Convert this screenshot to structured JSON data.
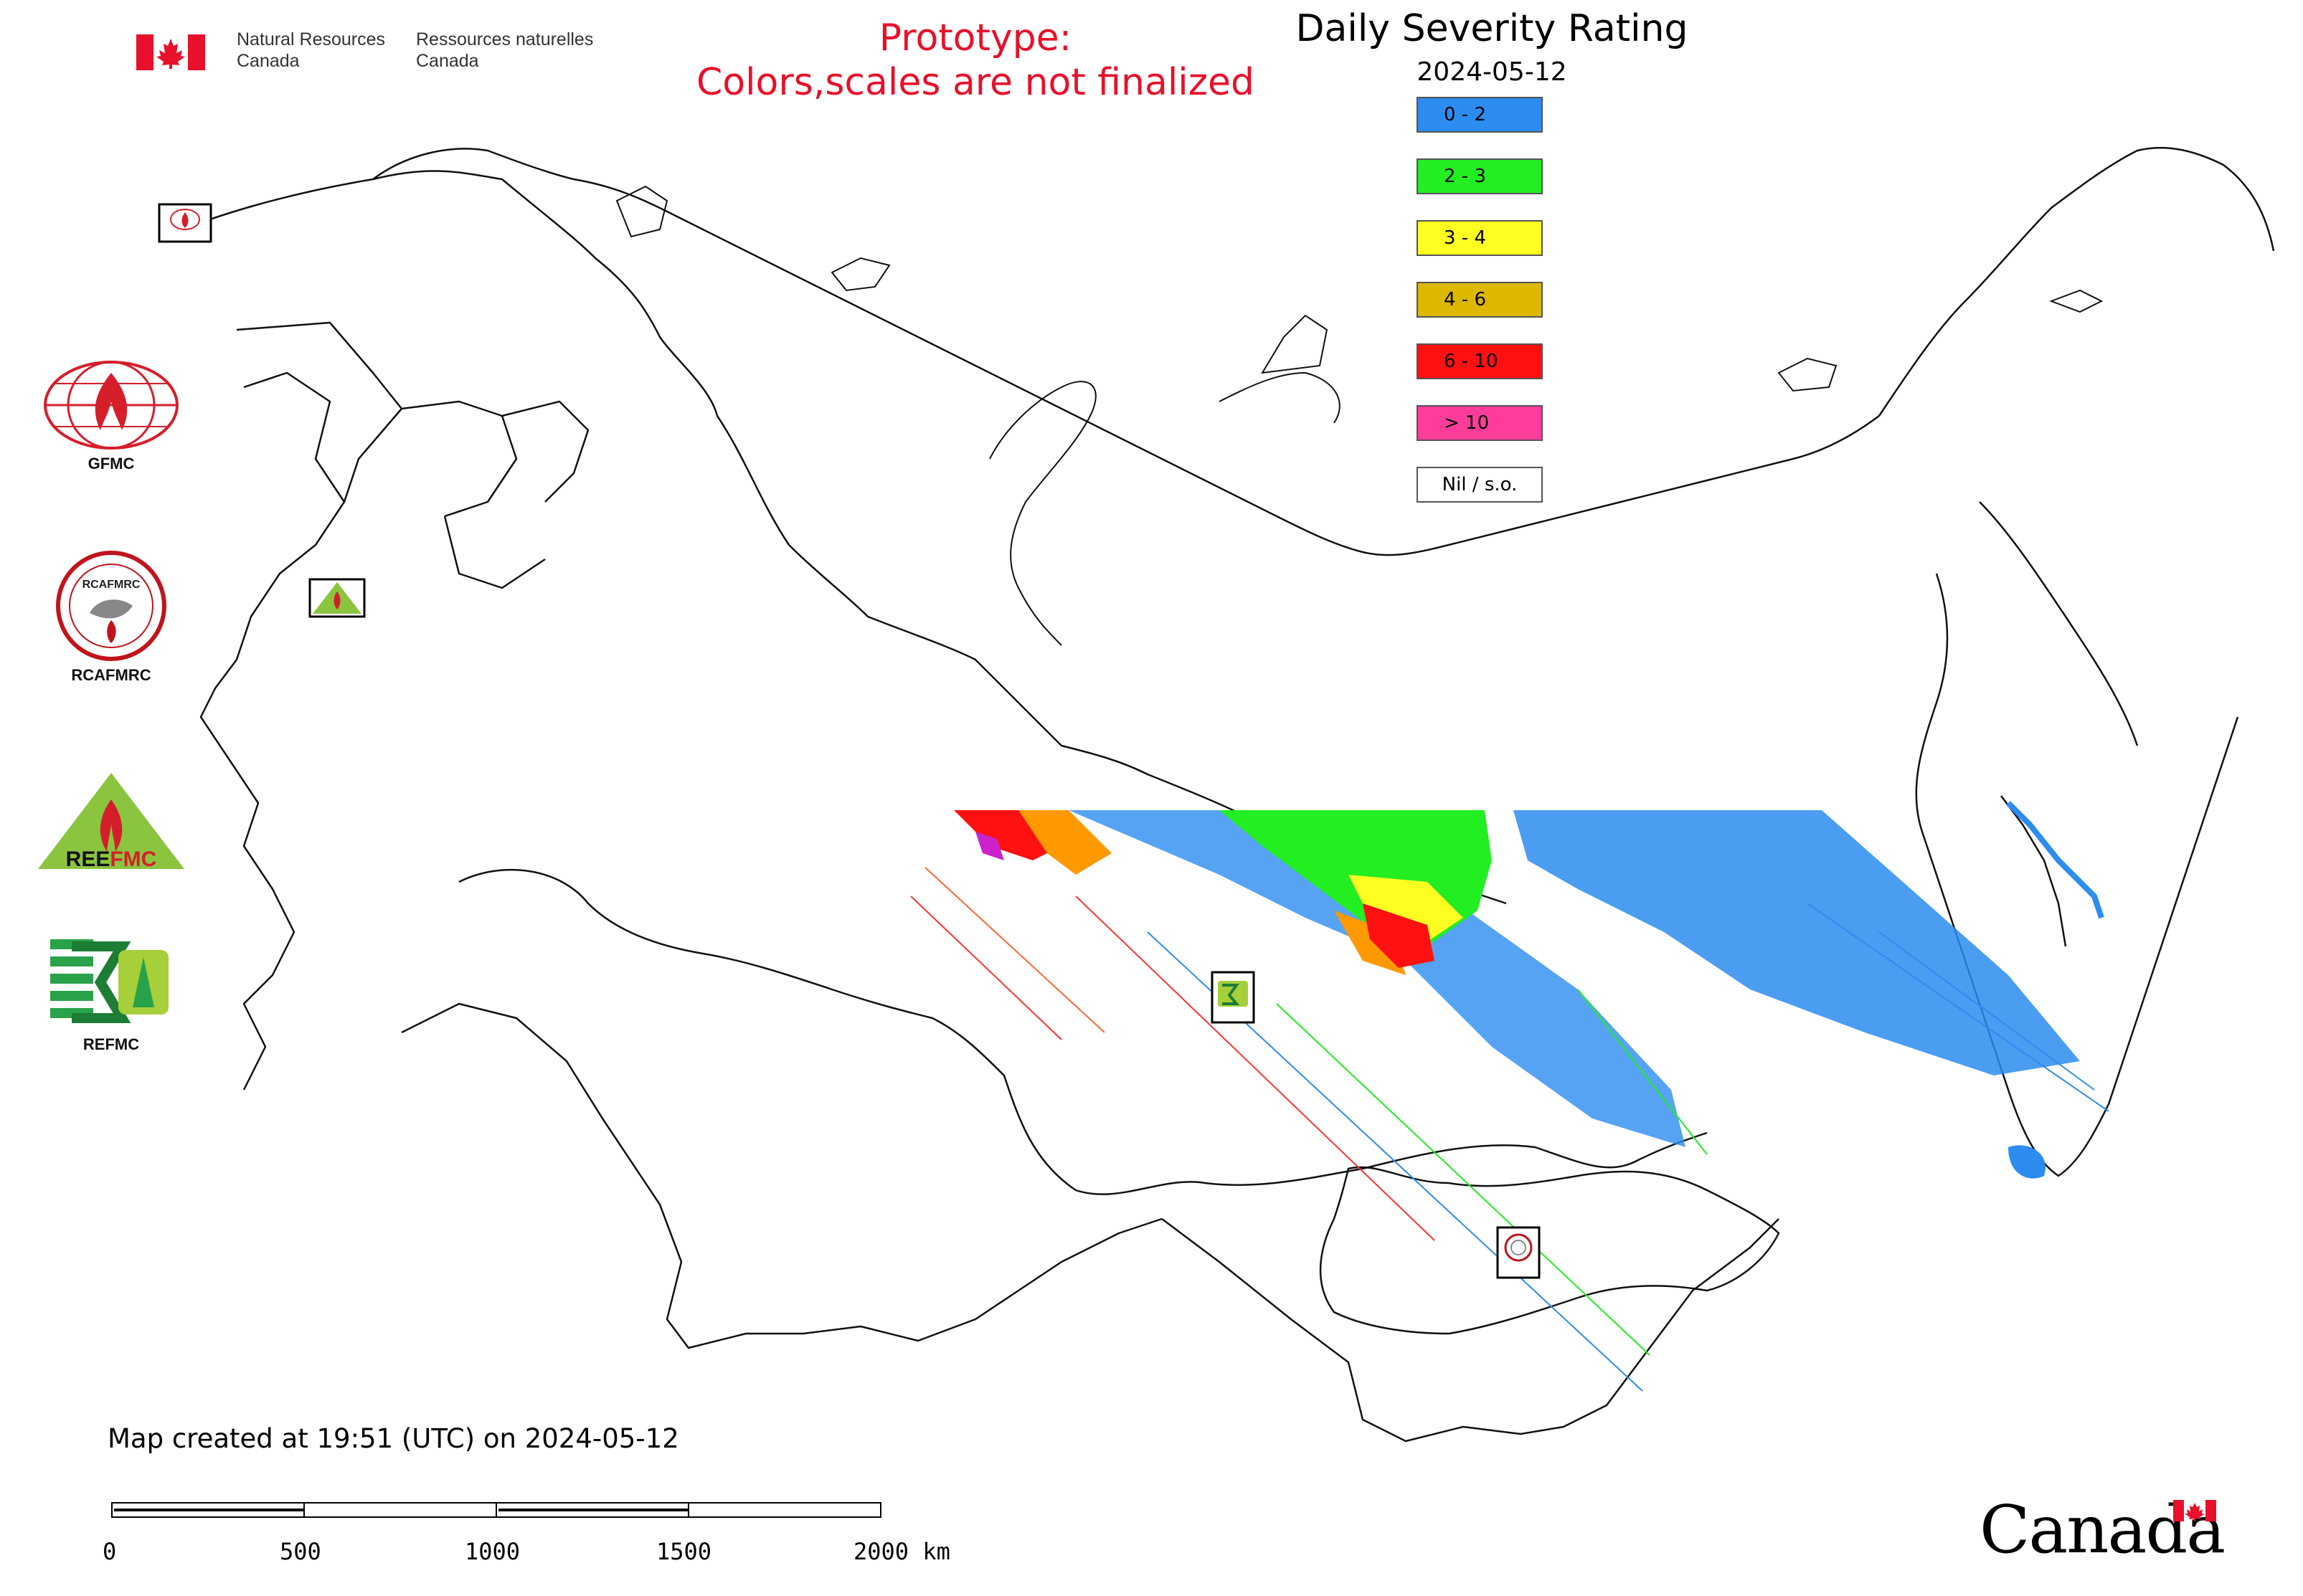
{
  "header": {
    "agency_en": "Natural Resources\nCanada",
    "agency_fr": "Ressources naturelles\nCanada",
    "prototype_line1": "Prototype:",
    "prototype_line2": "Colors,scales are not finalized"
  },
  "legend": {
    "title": "Daily Severity Rating",
    "date": "2024-05-12",
    "items": [
      {
        "label": "0 - 2",
        "color": "#2c8cf0"
      },
      {
        "label": "2 - 3",
        "color": "#22ee22"
      },
      {
        "label": "3 - 4",
        "color": "#ffff22"
      },
      {
        "label": "4 - 6",
        "color": "#ddb800"
      },
      {
        "label": "6 - 10",
        "color": "#ff1111"
      },
      {
        "label": "> 10",
        "color": "#ff3c9a"
      },
      {
        "label": "Nil / s.o.",
        "color": "#ffffff"
      }
    ]
  },
  "agency_logos": [
    {
      "label": "GFMC",
      "icon": "gfmc-logo"
    },
    {
      "label": "RCAFMRC",
      "icon": "rcafmrc-logo"
    },
    {
      "label": "",
      "icon": "reefmc-logo"
    },
    {
      "label": "REFMC",
      "icon": "refmc-logo"
    }
  ],
  "map_markers": [
    {
      "icon": "gfmc-marker",
      "label": "GFMC"
    },
    {
      "icon": "reefmc-marker",
      "label": "REEFMC"
    },
    {
      "icon": "refmc-marker",
      "label": "REFMC"
    },
    {
      "icon": "rcafmrc-marker",
      "label": "RCAFMRC"
    }
  ],
  "footer": {
    "created": "Map created at 19:51 (UTC) on 2024-05-12",
    "scale_ticks": [
      "0",
      "500",
      "1000",
      "1500",
      "2000 km"
    ],
    "wordmark": "Canada"
  }
}
